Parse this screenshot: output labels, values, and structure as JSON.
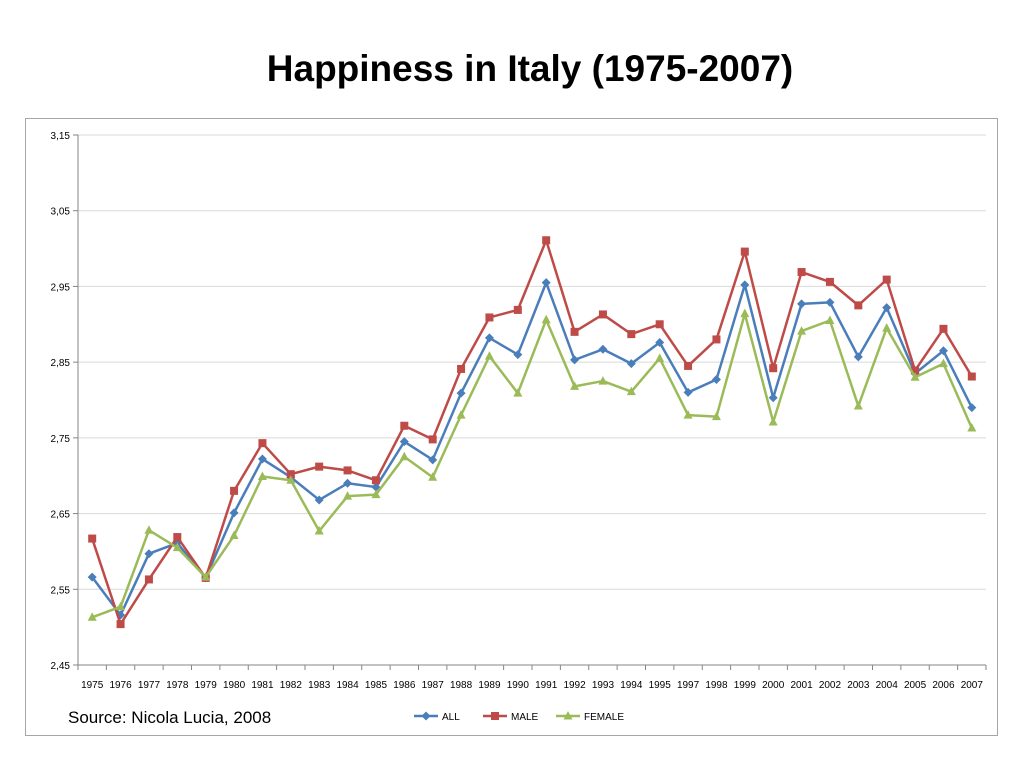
{
  "chart_data": {
    "type": "line",
    "title": "Happiness in Italy (1975-2007)",
    "source": "Source: Nicola Lucia, 2008",
    "xlabel": "",
    "ylabel": "",
    "ylim": [
      2.45,
      3.15
    ],
    "yticks": [
      "3,15",
      "3,05",
      "2,95",
      "2,85",
      "2,75",
      "2,65",
      "2,55",
      "2,45"
    ],
    "yticks_values": [
      3.15,
      3.05,
      2.95,
      2.85,
      2.75,
      2.65,
      2.55,
      2.45
    ],
    "categories": [
      "1975",
      "1976",
      "1977",
      "1978",
      "1979",
      "1980",
      "1981",
      "1982",
      "1983",
      "1984",
      "1985",
      "1986",
      "1987",
      "1988",
      "1989",
      "1990",
      "1991",
      "1992",
      "1993",
      "1994",
      "1995",
      "1997",
      "1998",
      "1999",
      "2000",
      "2001",
      "2002",
      "2003",
      "2004",
      "2005",
      "2006",
      "2007"
    ],
    "grid": true,
    "legend_position": "bottom",
    "series": [
      {
        "name": "ALL",
        "color": "#4a7ebb",
        "marker": "diamond",
        "values": [
          2.566,
          2.516,
          2.597,
          2.611,
          2.565,
          2.651,
          2.722,
          2.698,
          2.668,
          2.69,
          2.685,
          2.745,
          2.721,
          2.809,
          2.882,
          2.86,
          2.955,
          2.853,
          2.867,
          2.848,
          2.876,
          2.81,
          2.827,
          2.952,
          2.803,
          2.927,
          2.929,
          2.857,
          2.922,
          2.835,
          2.865,
          2.79
        ]
      },
      {
        "name": "MALE",
        "color": "#be4b48",
        "marker": "square",
        "values": [
          2.617,
          2.504,
          2.563,
          2.619,
          2.565,
          2.68,
          2.743,
          2.702,
          2.712,
          2.707,
          2.694,
          2.766,
          2.748,
          2.841,
          2.909,
          2.919,
          3.011,
          2.89,
          2.913,
          2.887,
          2.9,
          2.845,
          2.88,
          2.996,
          2.842,
          2.969,
          2.956,
          2.925,
          2.959,
          2.839,
          2.894,
          2.831
        ]
      },
      {
        "name": "FEMALE",
        "color": "#9bbb59",
        "marker": "triangle",
        "values": [
          2.513,
          2.527,
          2.628,
          2.605,
          2.566,
          2.621,
          2.699,
          2.694,
          2.627,
          2.673,
          2.675,
          2.725,
          2.698,
          2.78,
          2.858,
          2.809,
          2.906,
          2.818,
          2.825,
          2.811,
          2.855,
          2.78,
          2.778,
          2.914,
          2.771,
          2.891,
          2.905,
          2.792,
          2.895,
          2.83,
          2.848,
          2.763
        ]
      }
    ]
  }
}
